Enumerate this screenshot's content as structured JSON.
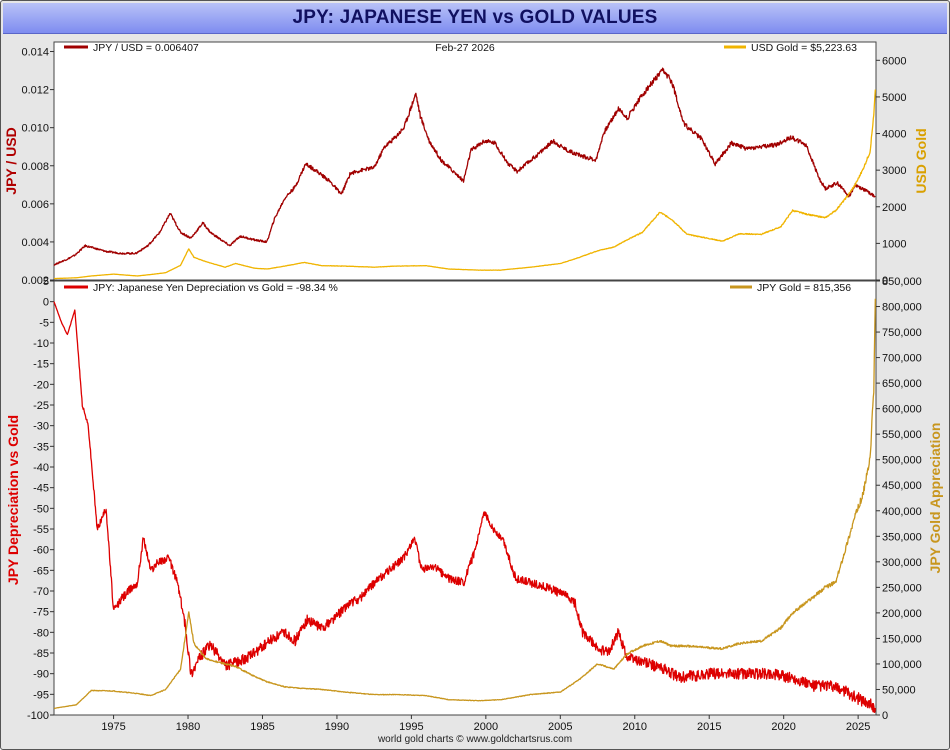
{
  "title": "JPY: JAPANESE YEN vs GOLD VALUES",
  "footer": "world gold charts © www.goldchartsrus.com",
  "colors": {
    "jpy_usd": "#a00000",
    "usd_gold": "#f0b400",
    "depreciation": "#dd0000",
    "jpy_gold": "#c8961e"
  },
  "chart_data": [
    {
      "type": "line",
      "legend_left": "JPY / USD  = 0.006407",
      "legend_center": "Feb-27  2026",
      "legend_right": "USD Gold  = $5,223.63",
      "ylabel_left": "JPY / USD",
      "ylabel_right": "USD Gold",
      "xlim": [
        1971,
        2026.2
      ],
      "ylim_left": [
        0.002,
        0.0145
      ],
      "ylim_right": [
        0,
        6500
      ],
      "yticks_left": [
        "0.002",
        "0.004",
        "0.006",
        "0.008",
        "0.010",
        "0.012",
        "0.014"
      ],
      "yticks_right": [
        "0",
        "1000",
        "2000",
        "3000",
        "4000",
        "5000",
        "6000"
      ],
      "series": [
        {
          "name": "JPY / USD",
          "axis": "left",
          "x": [
            1971,
            1971.9,
            1972.4,
            1973.1,
            1974.5,
            1975.5,
            1976.5,
            1977.3,
            1978.1,
            1978.8,
            1979.5,
            1980.2,
            1981,
            1981.5,
            1982.8,
            1983.5,
            1984.5,
            1985.3,
            1985.8,
            1986.5,
            1987.2,
            1987.9,
            1988.5,
            1989.5,
            1990.3,
            1990.9,
            1991.8,
            1992.5,
            1993.2,
            1993.8,
            1994.5,
            1995.3,
            1995.6,
            1996.2,
            1997,
            1998.5,
            1999,
            1999.9,
            2000.6,
            2001.5,
            2002.1,
            2003.5,
            2004.5,
            2005.5,
            2006.5,
            2007.4,
            2007.9,
            2008.9,
            2009.5,
            2010.3,
            2011.1,
            2011.9,
            2012.5,
            2013.3,
            2014.5,
            2015.4,
            2016.5,
            2017.5,
            2018.5,
            2019.5,
            2020.5,
            2021.5,
            2022.4,
            2022.8,
            2023.6,
            2024.4,
            2024.8,
            2025.5,
            2026.15
          ],
          "values": [
            0.0028,
            0.0031,
            0.0033,
            0.0038,
            0.0035,
            0.0034,
            0.0034,
            0.0038,
            0.0045,
            0.0055,
            0.0045,
            0.0042,
            0.005,
            0.0045,
            0.0038,
            0.0043,
            0.0041,
            0.004,
            0.0052,
            0.0063,
            0.0069,
            0.0081,
            0.0078,
            0.0072,
            0.0065,
            0.0076,
            0.0078,
            0.0079,
            0.009,
            0.0094,
            0.01,
            0.0118,
            0.0106,
            0.0093,
            0.0083,
            0.0072,
            0.0088,
            0.0093,
            0.0092,
            0.0081,
            0.0077,
            0.0086,
            0.0093,
            0.0088,
            0.0085,
            0.0083,
            0.0097,
            0.011,
            0.0105,
            0.0115,
            0.0123,
            0.013,
            0.0124,
            0.0102,
            0.0094,
            0.0081,
            0.0092,
            0.0089,
            0.009,
            0.0091,
            0.0095,
            0.0091,
            0.0073,
            0.0068,
            0.0071,
            0.0064,
            0.007,
            0.0067,
            0.0064
          ]
        },
        {
          "name": "USD Gold",
          "axis": "right",
          "x": [
            1971,
            1972.5,
            1973.5,
            1975,
            1976.6,
            1977.5,
            1978.5,
            1979.5,
            1980.05,
            1980.4,
            1981.2,
            1982.5,
            1983.2,
            1984.5,
            1985.3,
            1986.5,
            1987.8,
            1989,
            1990.5,
            1992.5,
            1994,
            1996,
            1997.5,
            1999.5,
            2001,
            2003,
            2005,
            2006.3,
            2007.5,
            2008.6,
            2009.5,
            2010.5,
            2011.7,
            2012.5,
            2013.5,
            2015.9,
            2017,
            2018.5,
            2019.8,
            2020.6,
            2021.5,
            2022.8,
            2023.5,
            2024.3,
            2024.8,
            2025.3,
            2025.8,
            2026.05,
            2026.15
          ],
          "values": [
            40,
            60,
            110,
            160,
            110,
            150,
            200,
            400,
            850,
            620,
            500,
            350,
            450,
            320,
            300,
            380,
            480,
            390,
            380,
            350,
            380,
            390,
            300,
            270,
            270,
            350,
            450,
            620,
            800,
            900,
            1100,
            1300,
            1850,
            1650,
            1250,
            1060,
            1260,
            1250,
            1450,
            1900,
            1800,
            1700,
            1900,
            2300,
            2600,
            3000,
            3500,
            4500,
            5200
          ]
        }
      ]
    },
    {
      "type": "line",
      "legend_left": "JPY: Japanese Yen Depreciation vs Gold = -98.34 %",
      "legend_right": "JPY Gold  = 815,356",
      "ylabel_left": "JPY Depreciation vs Gold",
      "ylabel_right": "JPY Gold Appreciation",
      "xlim": [
        1971,
        2026.2
      ],
      "ylim_left": [
        -100,
        5
      ],
      "ylim_right": [
        0,
        850000
      ],
      "yticks_left": [
        "5",
        "0",
        "-5",
        "-10",
        "-15",
        "-20",
        "-25",
        "-30",
        "-35",
        "-40",
        "-45",
        "-50",
        "-55",
        "-60",
        "-65",
        "-70",
        "-75",
        "-80",
        "-85",
        "-90",
        "-95",
        "-100"
      ],
      "yticks_right": [
        "0",
        "50,000",
        "100,000",
        "150,000",
        "200,000",
        "250,000",
        "300,000",
        "350,000",
        "400,000",
        "450,000",
        "500,000",
        "550,000",
        "600,000",
        "650,000",
        "700,000",
        "750,000",
        "800,000",
        "850,000"
      ],
      "xticks": [
        "1975",
        "1980",
        "1985",
        "1990",
        "1995",
        "2000",
        "2005",
        "2010",
        "2015",
        "2020",
        "2025"
      ],
      "series": [
        {
          "name": "JPY Depreciation vs Gold",
          "axis": "left",
          "x": [
            1971,
            1971.5,
            1971.9,
            1972.4,
            1972.9,
            1973.3,
            1973.9,
            1974.5,
            1975,
            1975.5,
            1976,
            1976.6,
            1977,
            1977.5,
            1978,
            1978.7,
            1979.3,
            1979.8,
            1980.2,
            1980.8,
            1981.5,
            1982.5,
            1983.5,
            1984.5,
            1985.5,
            1986.5,
            1987.2,
            1988,
            1989,
            1990,
            1990.8,
            1991.5,
            1992.5,
            1993.5,
            1994.5,
            1995.2,
            1995.7,
            1996.5,
            1997.5,
            1998.5,
            1999.3,
            1999.9,
            2000.5,
            2001.2,
            2002,
            2003,
            2004,
            2005.3,
            2006,
            2006.5,
            2007.5,
            2008.2,
            2008.9,
            2009.5,
            2010.5,
            2012,
            2013,
            2015,
            2017,
            2019,
            2020.6,
            2022,
            2023,
            2024,
            2025,
            2025.6,
            2026.15
          ],
          "values": [
            0,
            -5,
            -8,
            -2,
            -25,
            -30,
            -55,
            -50,
            -75,
            -72,
            -70,
            -68,
            -57,
            -65,
            -63,
            -62,
            -68,
            -78,
            -90,
            -86,
            -83,
            -88,
            -87,
            -85,
            -82,
            -80,
            -82,
            -77,
            -79,
            -76,
            -73,
            -72,
            -68,
            -65,
            -62,
            -57,
            -65,
            -64,
            -67,
            -68,
            -60,
            -51,
            -55,
            -58,
            -67,
            -68,
            -69,
            -71,
            -73,
            -80,
            -84,
            -85,
            -80,
            -86,
            -87,
            -89,
            -91,
            -90,
            -90,
            -90,
            -91,
            -93,
            -93,
            -94,
            -96,
            -97,
            -98.3
          ]
        },
        {
          "name": "JPY Gold",
          "axis": "right",
          "x": [
            1971,
            1972.5,
            1973.5,
            1975,
            1976.6,
            1977.5,
            1978.5,
            1979.5,
            1980.05,
            1980.4,
            1981.2,
            1982.5,
            1983.2,
            1984.5,
            1985.3,
            1986.5,
            1987.8,
            1989,
            1990.5,
            1992.5,
            1994,
            1996,
            1997.5,
            1999.5,
            2001,
            2003,
            2005,
            2006.3,
            2007.5,
            2008.6,
            2009.5,
            2010.5,
            2011.7,
            2012.5,
            2013.5,
            2015.9,
            2017,
            2018.5,
            2019.8,
            2020.6,
            2021.5,
            2022.8,
            2023.5,
            2024.3,
            2024.8,
            2025.3,
            2025.8,
            2026.05,
            2026.15
          ],
          "values": [
            13000,
            20000,
            48000,
            47000,
            42000,
            38000,
            50000,
            90000,
            200000,
            140000,
            110000,
            100000,
            95000,
            75000,
            65000,
            55000,
            52000,
            50000,
            45000,
            40000,
            40000,
            38000,
            30000,
            28000,
            30000,
            40000,
            45000,
            70000,
            100000,
            90000,
            120000,
            135000,
            145000,
            135000,
            135000,
            130000,
            140000,
            145000,
            170000,
            200000,
            220000,
            250000,
            260000,
            340000,
            390000,
            430000,
            500000,
            640000,
            815356
          ]
        }
      ]
    }
  ]
}
